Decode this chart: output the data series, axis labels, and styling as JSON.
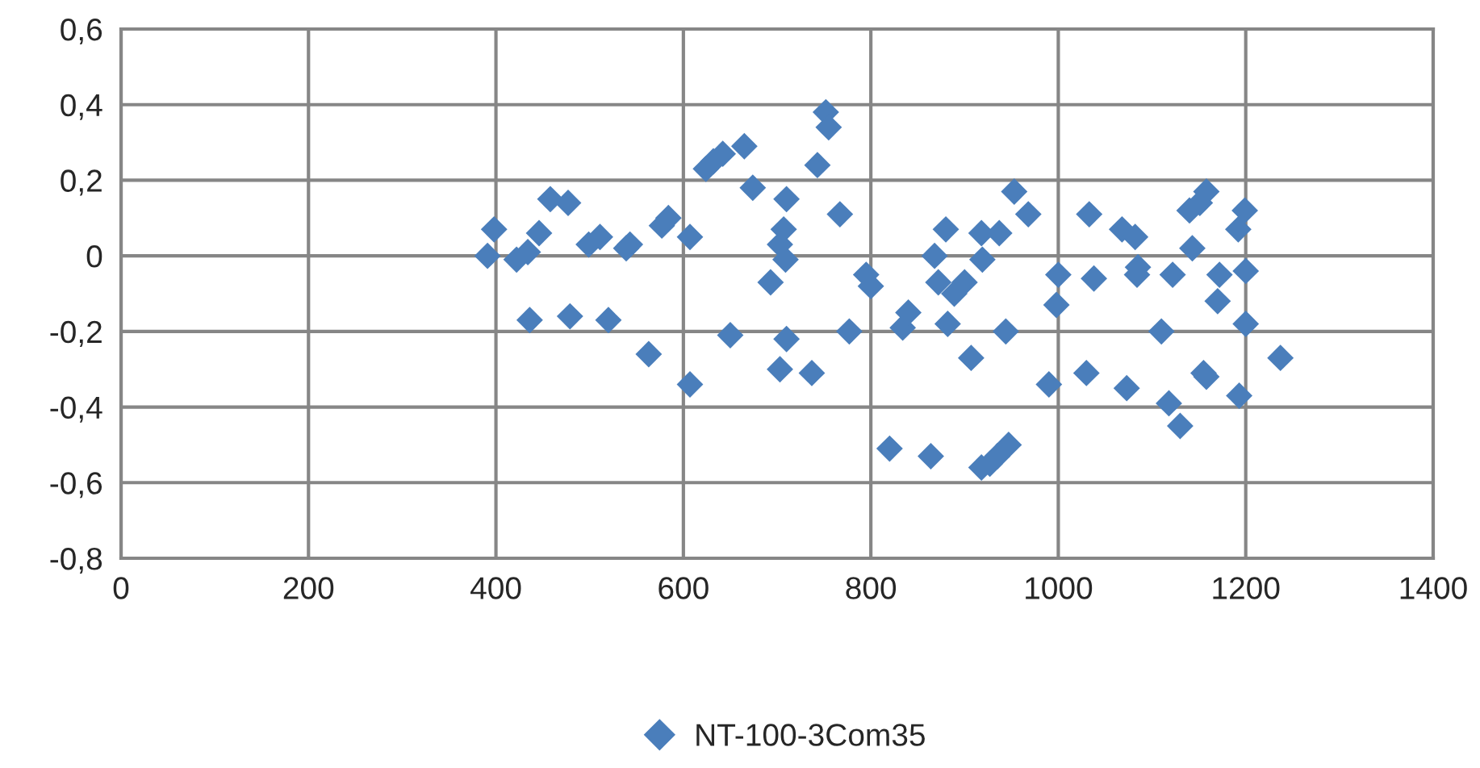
{
  "chart_data": {
    "type": "scatter",
    "marker": "diamond",
    "grid": true,
    "legend": "bottom",
    "xlim": [
      0,
      1400
    ],
    "xticks": [
      0,
      200,
      400,
      600,
      800,
      1000,
      1200,
      1400
    ],
    "ylim": [
      -0.8,
      0.6
    ],
    "yticks": [
      {
        "value": -0.8,
        "label": "-0,8"
      },
      {
        "value": -0.6,
        "label": "-0,6"
      },
      {
        "value": -0.4,
        "label": "-0,4"
      },
      {
        "value": -0.2,
        "label": "-0,2"
      },
      {
        "value": 0,
        "label": "0"
      },
      {
        "value": 0.2,
        "label": "0,2"
      },
      {
        "value": 0.4,
        "label": "0,4"
      },
      {
        "value": 0.6,
        "label": "0,6"
      }
    ],
    "series": [
      {
        "name": "NT-100-3Com35",
        "color": "#4a7ebb",
        "x": [
          391,
          398,
          422,
          434,
          436,
          446,
          458,
          477,
          479,
          499,
          511,
          520,
          539,
          543,
          563,
          577,
          584,
          607,
          607,
          624,
          632,
          642,
          650,
          665,
          674,
          693,
          703,
          703,
          707,
          710,
          709,
          710,
          737,
          743,
          752,
          755,
          767,
          777,
          795,
          800,
          820,
          834,
          840,
          864,
          868,
          872,
          880,
          882,
          889,
          900,
          907,
          918,
          919,
          918,
          927,
          935,
          937,
          944,
          947,
          953,
          968,
          990,
          998,
          1000,
          1030,
          1033,
          1038,
          1068,
          1073,
          1082,
          1085,
          1084,
          1110,
          1118,
          1122,
          1130,
          1140,
          1143,
          1151,
          1158,
          1155,
          1158,
          1170,
          1172,
          1192,
          1193,
          1199,
          1200,
          1200,
          1237
        ],
        "values": [
          0.0,
          0.07,
          -0.01,
          0.01,
          -0.17,
          0.06,
          0.15,
          0.14,
          -0.16,
          0.03,
          0.05,
          -0.17,
          0.02,
          0.03,
          -0.26,
          0.08,
          0.1,
          0.05,
          -0.34,
          0.23,
          0.25,
          0.27,
          -0.21,
          0.29,
          0.18,
          -0.07,
          0.03,
          -0.3,
          0.07,
          0.15,
          -0.01,
          -0.22,
          -0.31,
          0.24,
          0.38,
          0.34,
          0.11,
          -0.2,
          -0.05,
          -0.08,
          -0.51,
          -0.19,
          -0.15,
          -0.53,
          0.0,
          -0.07,
          0.07,
          -0.18,
          -0.1,
          -0.07,
          -0.27,
          0.06,
          -0.01,
          -0.56,
          -0.55,
          -0.53,
          0.06,
          -0.2,
          -0.5,
          0.17,
          0.11,
          -0.34,
          -0.13,
          -0.05,
          -0.31,
          0.11,
          -0.06,
          0.07,
          -0.35,
          0.05,
          -0.03,
          -0.05,
          -0.2,
          -0.39,
          -0.05,
          -0.45,
          0.12,
          0.02,
          0.14,
          0.17,
          -0.31,
          -0.32,
          -0.12,
          -0.05,
          0.07,
          -0.37,
          0.12,
          -0.04,
          -0.18,
          -0.27
        ]
      }
    ]
  }
}
